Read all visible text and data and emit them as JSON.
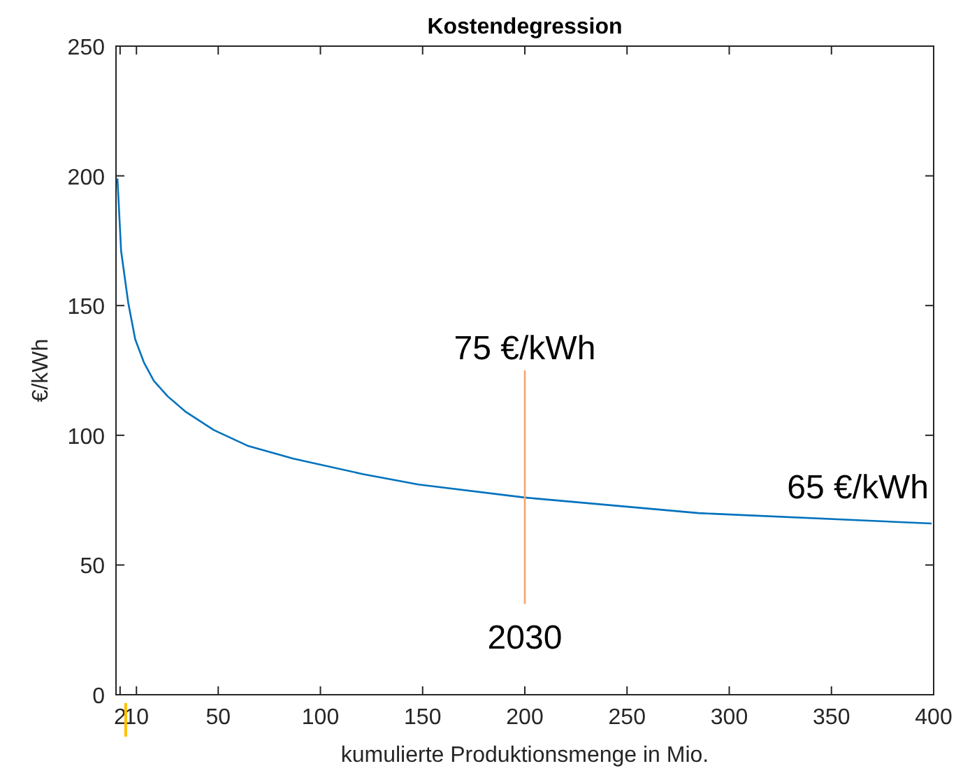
{
  "chart_data": {
    "type": "line",
    "title": "Kostendegression",
    "xlabel": "kumulierte Produktionsmenge in Mio.",
    "ylabel": "€/kWh",
    "xlim": [
      0,
      400
    ],
    "ylim": [
      0,
      250
    ],
    "xticks": [
      2,
      10,
      50,
      100,
      150,
      200,
      250,
      300,
      350,
      400
    ],
    "yticks": [
      0,
      50,
      100,
      150,
      200,
      250
    ],
    "grid": false,
    "series": [
      {
        "color": "#0072bd",
        "x": [
          0.7,
          2.5,
          6,
          9.4,
          13.7,
          18.5,
          25.3,
          34.2,
          47.9,
          64.3,
          86.8,
          121,
          148,
          200,
          285,
          399
        ],
        "values": [
          199,
          171,
          151,
          137,
          128,
          121,
          115,
          109,
          102,
          96,
          91,
          85,
          81,
          76,
          70,
          66
        ]
      },
      {
        "color": "#f4a46c",
        "x": [
          200,
          200
        ],
        "values": [
          35,
          125
        ]
      }
    ],
    "annotations": [
      "75 €/kWh",
      "2030",
      "65 €/kWh"
    ]
  }
}
